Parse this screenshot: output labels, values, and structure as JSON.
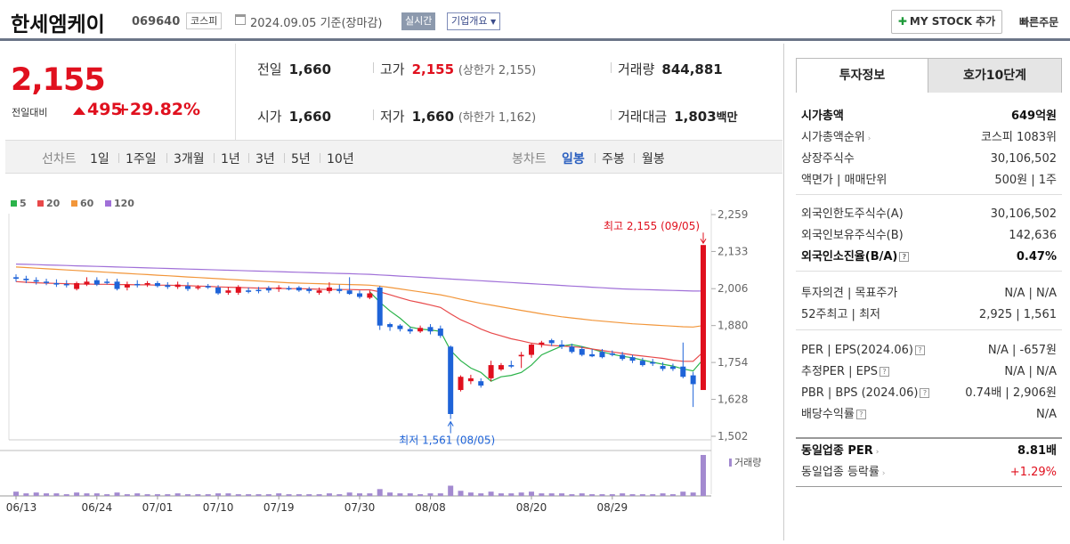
{
  "header": {
    "name": "한세엠케이",
    "code": "069640",
    "market": "코스피",
    "date": "2024.09.05 기준(장마감)",
    "realtime": "실시간",
    "corp_overview": "기업개요",
    "mystock": "MY STOCK 추가",
    "quick_order": "빠른주문"
  },
  "price": {
    "current": "2,155",
    "change_label": "전일대비",
    "change": "495",
    "change_pct": "+29.82%"
  },
  "quote": {
    "prev_label": "전일",
    "prev": "1,660",
    "high_label": "고가",
    "high": "2,155",
    "upper_limit": "(상한가 2,155)",
    "volume_label": "거래량",
    "volume": "844,881",
    "open_label": "시가",
    "open": "1,660",
    "low_label": "저가",
    "low": "1,660",
    "lower_limit": "(하한가 1,162)",
    "amount_label": "거래대금",
    "amount": "1,803",
    "amount_unit": "백만"
  },
  "period_bar": {
    "line_label": "선차트",
    "line_opts": [
      "1일",
      "1주일",
      "3개월",
      "1년",
      "3년",
      "5년",
      "10년"
    ],
    "candle_label": "봉차트",
    "candle_opts": [
      "일봉",
      "주봉",
      "월봉"
    ],
    "selected": "일봉"
  },
  "chart_data": {
    "type": "candlestick",
    "legend": [
      {
        "name": "5",
        "color": "#2bb34a"
      },
      {
        "name": "20",
        "color": "#e8494a"
      },
      {
        "name": "60",
        "color": "#f2963a"
      },
      {
        "name": "120",
        "color": "#a070d8"
      }
    ],
    "y_ticks": [
      "2,259",
      "2,133",
      "2,006",
      "1,880",
      "1,754",
      "1,628",
      "1,502"
    ],
    "ylim": [
      1502,
      2259
    ],
    "x_ticks": [
      "06/13",
      "06/24",
      "07/01",
      "07/10",
      "07/19",
      "07/30",
      "08/08",
      "08/20",
      "08/29"
    ],
    "high_note": "최고 2,155 (09/05)",
    "low_note": "최저 1,561 (08/05)",
    "volume_label": "거래량",
    "up_color": "#e0101e",
    "down_color": "#1e63d8",
    "candles": [
      [
        2045,
        2040,
        2055,
        2030
      ],
      [
        2040,
        2035,
        2050,
        2025
      ],
      [
        2035,
        2030,
        2045,
        2020
      ],
      [
        2030,
        2028,
        2040,
        2018
      ],
      [
        2025,
        2020,
        2038,
        2012
      ],
      [
        2022,
        2020,
        2035,
        2010
      ],
      [
        2005,
        2025,
        2030,
        2000
      ],
      [
        2020,
        2030,
        2045,
        2015
      ],
      [
        2035,
        2020,
        2045,
        2015
      ],
      [
        2030,
        2028,
        2040,
        2020
      ],
      [
        2030,
        2005,
        2040,
        2000
      ],
      [
        2010,
        2020,
        2030,
        2000
      ],
      [
        2022,
        2018,
        2035,
        2010
      ],
      [
        2020,
        2025,
        2032,
        2012
      ],
      [
        2025,
        2015,
        2032,
        2010
      ],
      [
        2018,
        2012,
        2028,
        2005
      ],
      [
        2012,
        2020,
        2030,
        2005
      ],
      [
        2015,
        2005,
        2028,
        1998
      ],
      [
        2010,
        2012,
        2018,
        2002
      ],
      [
        2015,
        2010,
        2022,
        2005
      ],
      [
        2010,
        1990,
        2018,
        1985
      ],
      [
        1992,
        2000,
        2012,
        1985
      ],
      [
        1992,
        2012,
        2018,
        1985
      ],
      [
        2000,
        1995,
        2010,
        1990
      ],
      [
        2002,
        2000,
        2012,
        1990
      ],
      [
        2008,
        2000,
        2015,
        1992
      ],
      [
        2005,
        2010,
        2018,
        1995
      ],
      [
        2008,
        2005,
        2015,
        2000
      ],
      [
        2010,
        2000,
        2015,
        1995
      ],
      [
        2005,
        1998,
        2012,
        1990
      ],
      [
        1992,
        2000,
        2010,
        1985
      ],
      [
        1998,
        2010,
        2028,
        1990
      ],
      [
        2005,
        1998,
        2020,
        1990
      ],
      [
        2000,
        1988,
        2045,
        1985
      ],
      [
        1990,
        1978,
        2000,
        1972
      ],
      [
        1975,
        1990,
        2000,
        1970
      ],
      [
        2010,
        1880,
        2015,
        1865
      ],
      [
        1885,
        1875,
        1890,
        1862
      ],
      [
        1880,
        1868,
        1885,
        1860
      ],
      [
        1868,
        1860,
        1875,
        1852
      ],
      [
        1860,
        1872,
        1880,
        1855
      ],
      [
        1875,
        1860,
        1885,
        1850
      ],
      [
        1870,
        1845,
        1880,
        1838
      ],
      [
        1808,
        1578,
        1812,
        1561
      ],
      [
        1660,
        1705,
        1710,
        1655
      ],
      [
        1690,
        1700,
        1712,
        1680
      ],
      [
        1690,
        1675,
        1700,
        1668
      ],
      [
        1700,
        1745,
        1760,
        1690
      ],
      [
        1730,
        1745,
        1752,
        1725
      ],
      [
        1745,
        1740,
        1760,
        1735
      ],
      [
        1775,
        1780,
        1790,
        1735
      ],
      [
        1780,
        1815,
        1818,
        1770
      ],
      [
        1815,
        1822,
        1828,
        1805
      ],
      [
        1830,
        1820,
        1835,
        1810
      ],
      [
        1815,
        1808,
        1830,
        1800
      ],
      [
        1808,
        1790,
        1818,
        1785
      ],
      [
        1800,
        1780,
        1810,
        1775
      ],
      [
        1782,
        1775,
        1800,
        1772
      ],
      [
        1790,
        1772,
        1800,
        1768
      ],
      [
        1785,
        1780,
        1795,
        1775
      ],
      [
        1780,
        1766,
        1790,
        1760
      ],
      [
        1772,
        1760,
        1780,
        1752
      ],
      [
        1760,
        1745,
        1770,
        1740
      ],
      [
        1755,
        1750,
        1766,
        1742
      ],
      [
        1742,
        1732,
        1755,
        1725
      ],
      [
        1740,
        1732,
        1750,
        1725
      ],
      [
        1740,
        1705,
        1822,
        1700
      ],
      [
        1710,
        1680,
        1722,
        1602
      ],
      [
        1660,
        2155,
        2155,
        1660
      ]
    ],
    "volumes": [
      5,
      3,
      4,
      3,
      3,
      2,
      4,
      3,
      3,
      2,
      4,
      2,
      3,
      2,
      2,
      2,
      3,
      2,
      2,
      2,
      3,
      3,
      2,
      2,
      2,
      2,
      3,
      2,
      2,
      2,
      2,
      3,
      2,
      4,
      3,
      3,
      8,
      4,
      3,
      3,
      2,
      3,
      3,
      12,
      6,
      4,
      3,
      5,
      3,
      3,
      4,
      5,
      3,
      3,
      3,
      2,
      3,
      2,
      2,
      2,
      3,
      2,
      2,
      2,
      3,
      2,
      5,
      4,
      48
    ],
    "ma": {
      "5": [
        2045,
        2040,
        2035,
        2030,
        2028,
        2025,
        2022,
        2025,
        2027,
        2030,
        2025,
        2020,
        2018,
        2020,
        2022,
        2020,
        2020,
        2018,
        2015,
        2013,
        2008,
        2005,
        2002,
        2003,
        2005,
        2005,
        2005,
        2005,
        2005,
        2004,
        2002,
        2003,
        2005,
        2004,
        2000,
        1995,
        1960,
        1930,
        1905,
        1875,
        1868,
        1865,
        1860,
        1795,
        1760,
        1735,
        1720,
        1690,
        1705,
        1710,
        1720,
        1745,
        1780,
        1795,
        1810,
        1815,
        1808,
        1800,
        1790,
        1782,
        1775,
        1770,
        1762,
        1755,
        1748,
        1742,
        1732,
        1725,
        1765
      ],
      "20": [
        2030,
        2028,
        2026,
        2025,
        2024,
        2023,
        2022,
        2022,
        2021,
        2021,
        2020,
        2020,
        2019,
        2019,
        2018,
        2018,
        2017,
        2016,
        2015,
        2014,
        2012,
        2011,
        2010,
        2009,
        2008,
        2008,
        2007,
        2006,
        2006,
        2005,
        2004,
        2003,
        2003,
        2003,
        2002,
        2002,
        1995,
        1985,
        1975,
        1965,
        1958,
        1950,
        1942,
        1920,
        1900,
        1885,
        1868,
        1855,
        1845,
        1835,
        1828,
        1820,
        1815,
        1812,
        1810,
        1808,
        1805,
        1800,
        1795,
        1790,
        1785,
        1780,
        1776,
        1772,
        1768,
        1762,
        1758,
        1758,
        1790
      ],
      "60": [
        2080,
        2078,
        2076,
        2074,
        2072,
        2070,
        2068,
        2066,
        2064,
        2062,
        2060,
        2058,
        2056,
        2054,
        2052,
        2050,
        2048,
        2046,
        2044,
        2042,
        2040,
        2038,
        2036,
        2034,
        2032,
        2030,
        2028,
        2026,
        2025,
        2024,
        2023,
        2022,
        2021,
        2020,
        2019,
        2018,
        2015,
        2010,
        2005,
        2000,
        1995,
        1990,
        1985,
        1978,
        1970,
        1963,
        1956,
        1950,
        1944,
        1938,
        1932,
        1926,
        1920,
        1915,
        1910,
        1906,
        1902,
        1898,
        1895,
        1892,
        1889,
        1886,
        1884,
        1882,
        1880,
        1878,
        1876,
        1875,
        1880
      ],
      "120": [
        2090,
        2089,
        2088,
        2087,
        2086,
        2085,
        2084,
        2083,
        2082,
        2081,
        2080,
        2079,
        2078,
        2077,
        2076,
        2075,
        2074,
        2073,
        2072,
        2071,
        2070,
        2069,
        2068,
        2067,
        2066,
        2065,
        2064,
        2063,
        2062,
        2061,
        2060,
        2059,
        2058,
        2057,
        2056,
        2055,
        2053,
        2051,
        2049,
        2047,
        2045,
        2043,
        2041,
        2039,
        2037,
        2035,
        2033,
        2031,
        2029,
        2027,
        2025,
        2023,
        2021,
        2019,
        2017,
        2015,
        2013,
        2011,
        2009,
        2007,
        2005,
        2004,
        2003,
        2002,
        2001,
        2000,
        1999,
        1998,
        1998
      ]
    }
  },
  "right_panel": {
    "tab_active": "투자정보",
    "tab_other": "호가10단계",
    "s1": [
      {
        "l": "시가총액",
        "r": "649억원",
        "bold": true
      },
      {
        "l": "시가총액순위",
        "r": "코스피 1083위",
        "arrow": true
      },
      {
        "l": "상장주식수",
        "r": "30,106,502"
      },
      {
        "l": "액면가 | 매매단위",
        "r": "500원 | 1주"
      }
    ],
    "s2": [
      {
        "l": "외국인한도주식수(A)",
        "r": "30,106,502"
      },
      {
        "l": "외국인보유주식수(B)",
        "r": "142,636"
      },
      {
        "l": "외국인소진율(B/A)",
        "r": "0.47%",
        "bold": true,
        "q": true
      }
    ],
    "s3": [
      {
        "l": "투자의견 | 목표주가",
        "r": "N/A | N/A"
      },
      {
        "l": "52주최고 | 최저",
        "r": "2,925 | 1,561"
      }
    ],
    "s4": [
      {
        "l": "PER | EPS(2024.06)",
        "r": "N/A | -657원",
        "q": true
      },
      {
        "l": "추정PER | EPS",
        "r": "N/A | N/A",
        "q": true
      },
      {
        "l": "PBR | BPS (2024.06)",
        "r": "0.74배 | 2,906원",
        "q": true
      },
      {
        "l": "배당수익률",
        "r": "N/A",
        "q": true
      }
    ],
    "s5": [
      {
        "l": "동일업종 PER",
        "r": "8.81배",
        "bold": true,
        "arrow": true
      },
      {
        "l": "동일업종 등락률",
        "r": "+1.29%",
        "red": true,
        "arrow": true
      }
    ]
  }
}
